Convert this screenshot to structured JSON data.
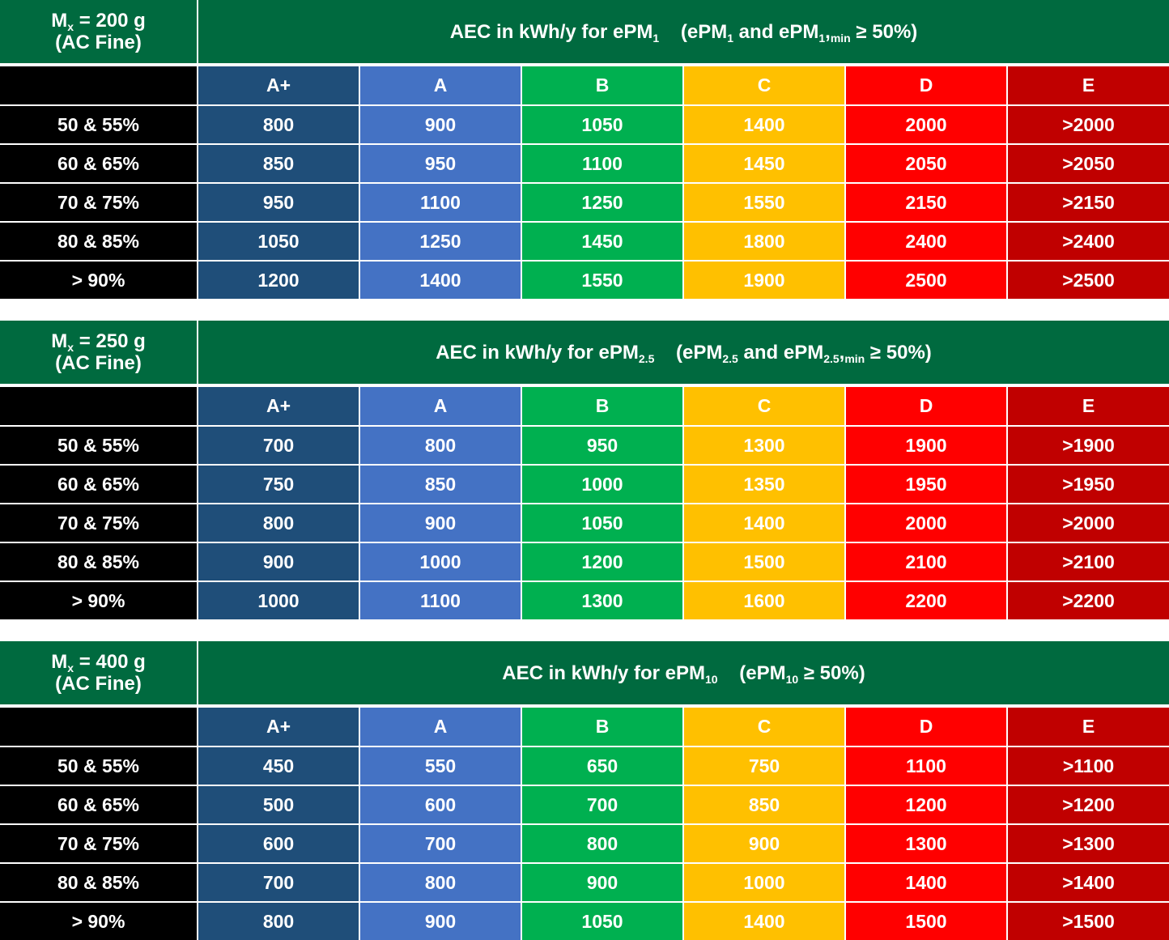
{
  "header_color": "#006a3f",
  "label_color": "#000000",
  "column_colors": [
    "#1f4e79",
    "#4472c4",
    "#00b050",
    "#ffc000",
    "#ff0000",
    "#c00000"
  ],
  "tables": [
    {
      "mass": [
        {
          "text": "M"
        },
        {
          "text": "x",
          "sub": true
        },
        {
          "text": " = 200 g"
        }
      ],
      "mass_note": "(AC Fine)",
      "title": [
        {
          "text": "AEC in kWh/y for ePM"
        },
        {
          "text": "1",
          "sub": true
        },
        {
          "text": "    (ePM"
        },
        {
          "text": "1",
          "sub": true
        },
        {
          "text": " and ePM"
        },
        {
          "text": "1",
          "sub": true
        },
        {
          "text": ","
        },
        {
          "text": "min",
          "sub": true
        },
        {
          "text": " ≥ 50%)"
        }
      ],
      "columns": [
        "A+",
        "A",
        "B",
        "C",
        "D",
        "E"
      ],
      "rows": [
        [
          "50 & 55%",
          "800",
          "900",
          "1050",
          "1400",
          "2000",
          ">2000"
        ],
        [
          "60 & 65%",
          "850",
          "950",
          "1100",
          "1450",
          "2050",
          ">2050"
        ],
        [
          "70 & 75%",
          "950",
          "1100",
          "1250",
          "1550",
          "2150",
          ">2150"
        ],
        [
          "80 & 85%",
          "1050",
          "1250",
          "1450",
          "1800",
          "2400",
          ">2400"
        ],
        [
          "> 90%",
          "1200",
          "1400",
          "1550",
          "1900",
          "2500",
          ">2500"
        ]
      ]
    },
    {
      "mass": [
        {
          "text": "M"
        },
        {
          "text": "x",
          "sub": true
        },
        {
          "text": " = 250 g"
        }
      ],
      "mass_note": "(AC Fine)",
      "title": [
        {
          "text": "AEC in kWh/y for ePM"
        },
        {
          "text": "2.5",
          "sub": true
        },
        {
          "text": "    (ePM"
        },
        {
          "text": "2.5",
          "sub": true
        },
        {
          "text": " and ePM"
        },
        {
          "text": "2.5",
          "sub": true
        },
        {
          "text": ","
        },
        {
          "text": "min",
          "sub": true
        },
        {
          "text": " ≥ 50%)"
        }
      ],
      "columns": [
        "A+",
        "A",
        "B",
        "C",
        "D",
        "E"
      ],
      "rows": [
        [
          "50 & 55%",
          "700",
          "800",
          "950",
          "1300",
          "1900",
          ">1900"
        ],
        [
          "60 & 65%",
          "750",
          "850",
          "1000",
          "1350",
          "1950",
          ">1950"
        ],
        [
          "70 & 75%",
          "800",
          "900",
          "1050",
          "1400",
          "2000",
          ">2000"
        ],
        [
          "80 & 85%",
          "900",
          "1000",
          "1200",
          "1500",
          "2100",
          ">2100"
        ],
        [
          "> 90%",
          "1000",
          "1100",
          "1300",
          "1600",
          "2200",
          ">2200"
        ]
      ]
    },
    {
      "mass": [
        {
          "text": "M"
        },
        {
          "text": "x",
          "sub": true
        },
        {
          "text": " = 400 g"
        }
      ],
      "mass_note": "(AC Fine)",
      "title": [
        {
          "text": "AEC in kWh/y for ePM"
        },
        {
          "text": "10",
          "sub": true
        },
        {
          "text": "    (ePM"
        },
        {
          "text": "10",
          "sub": true
        },
        {
          "text": " ≥ 50%)"
        }
      ],
      "columns": [
        "A+",
        "A",
        "B",
        "C",
        "D",
        "E"
      ],
      "rows": [
        [
          "50 & 55%",
          "450",
          "550",
          "650",
          "750",
          "1100",
          ">1100"
        ],
        [
          "60 & 65%",
          "500",
          "600",
          "700",
          "850",
          "1200",
          ">1200"
        ],
        [
          "70 & 75%",
          "600",
          "700",
          "800",
          "900",
          "1300",
          ">1300"
        ],
        [
          "80 & 85%",
          "700",
          "800",
          "900",
          "1000",
          "1400",
          ">1400"
        ],
        [
          "> 90%",
          "800",
          "900",
          "1050",
          "1400",
          "1500",
          ">1500"
        ]
      ]
    }
  ]
}
